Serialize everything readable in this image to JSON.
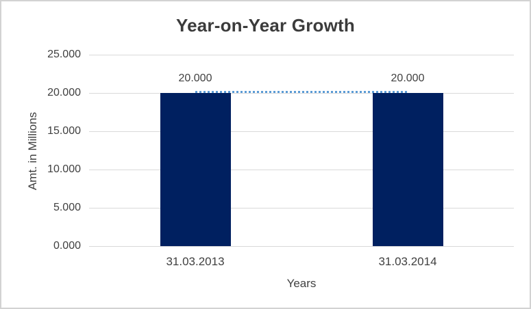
{
  "chart_data": {
    "type": "bar",
    "title": "Year-on-Year Growth",
    "xlabel": "Years",
    "ylabel": "Amt. in Millions",
    "categories": [
      "31.03.2013",
      "31.03.2014"
    ],
    "series": [
      {
        "name": "amount-bars",
        "type": "bar",
        "values": [
          20,
          20
        ],
        "color": "#002060"
      },
      {
        "name": "trend-line",
        "type": "line",
        "style": "dotted",
        "values": [
          20,
          20
        ],
        "color": "#5b9bd5"
      }
    ],
    "data_labels": [
      "20.000",
      "20.000"
    ],
    "y_ticks": [
      {
        "value": 25,
        "label": "25.000"
      },
      {
        "value": 20,
        "label": "20.000"
      },
      {
        "value": 15,
        "label": "15.000"
      },
      {
        "value": 10,
        "label": "10.000"
      },
      {
        "value": 5,
        "label": "5.000"
      },
      {
        "value": 0,
        "label": "0.000"
      }
    ],
    "ylim": [
      0,
      25
    ],
    "grid": true,
    "legend": "none"
  },
  "colors": {
    "bar": "#002060",
    "dotted_line": "#5b9bd5",
    "gridline": "#d9d9d9",
    "text": "#404040",
    "frame_border": "#d2d2d2",
    "background": "#ffffff"
  }
}
